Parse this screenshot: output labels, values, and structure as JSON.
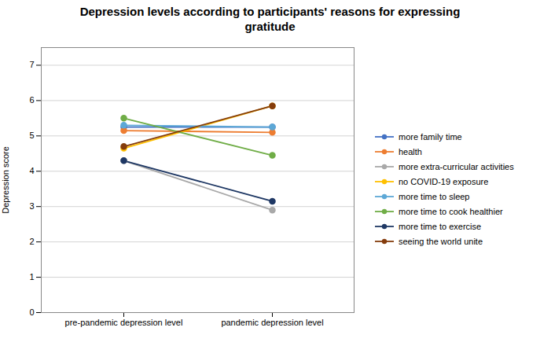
{
  "chart_data": {
    "type": "line",
    "title": "Depression levels according to participants' reasons for expressing\ngratitude",
    "categories": [
      "pre-pandemic depression level",
      "pandemic depression level"
    ],
    "ylabel": "Depression score",
    "ylim": [
      0,
      7.5
    ],
    "yticks": [
      0,
      1,
      2,
      3,
      4,
      5,
      6,
      7
    ],
    "grid": true,
    "legend": "right",
    "series": [
      {
        "name": "more family time",
        "color": "#4472C4",
        "values": [
          5.25,
          5.25
        ],
        "marker": "o"
      },
      {
        "name": "health",
        "color": "#ED7D31",
        "values": [
          5.15,
          5.1
        ],
        "marker": "o"
      },
      {
        "name": "more extra-curricular activities",
        "color": "#A9A9A9",
        "values": [
          4.3,
          2.9
        ],
        "marker": "o"
      },
      {
        "name": "no COVID-19 exposure",
        "color": "#FFC000",
        "values": [
          4.65,
          5.85
        ],
        "marker": "o"
      },
      {
        "name": "more time to sleep",
        "color": "#5DA8D6",
        "values": [
          5.3,
          5.25
        ],
        "marker": "o"
      },
      {
        "name": "more time to cook healthier",
        "color": "#70AD47",
        "values": [
          5.5,
          4.45
        ],
        "marker": "o"
      },
      {
        "name": "more time to exercise",
        "color": "#1F3864",
        "values": [
          4.3,
          3.15
        ],
        "marker": "o"
      },
      {
        "name": "seeing the world unite",
        "color": "#843C0C",
        "values": [
          4.7,
          5.85
        ],
        "marker": "o"
      }
    ]
  }
}
